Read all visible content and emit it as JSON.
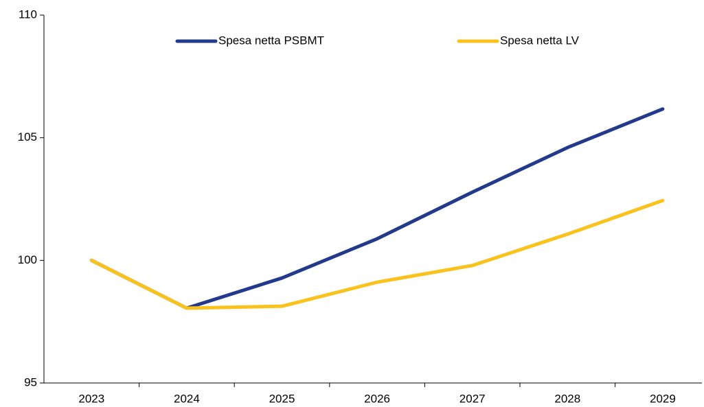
{
  "chart_data": {
    "type": "line",
    "categories": [
      "2023",
      "2024",
      "2025",
      "2026",
      "2027",
      "2028",
      "2029"
    ],
    "series": [
      {
        "name": "Spesa netta PSBMT",
        "color": "#233a8c",
        "values": [
          100,
          98.05,
          99.28,
          100.88,
          102.78,
          104.6,
          106.17
        ]
      },
      {
        "name": "Spesa netta LV",
        "color": "#f9c21c",
        "values": [
          100,
          98.05,
          98.13,
          99.11,
          99.79,
          101.07,
          102.44
        ]
      }
    ],
    "ylim": [
      95,
      110
    ],
    "yticks": [
      95,
      100,
      105,
      110
    ],
    "grid": false,
    "legend": "top"
  }
}
